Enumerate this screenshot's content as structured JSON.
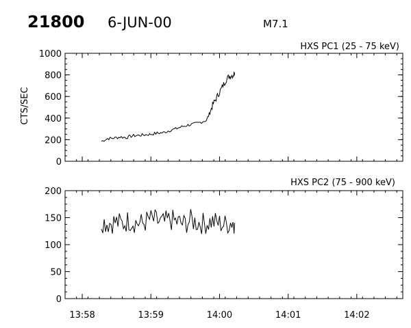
{
  "header": {
    "event_number": "21800",
    "date": "6-JUN-00",
    "flare_class": "M7.1"
  },
  "chart_data": [
    {
      "type": "line",
      "title": "HXS PC1 (25 - 75 keV)",
      "xlabel": "",
      "ylabel": "CTS/SEC",
      "ylim": [
        0,
        1000
      ],
      "yticks": [
        0,
        200,
        400,
        600,
        800,
        1000
      ],
      "xlim": [
        "13:57.75",
        "14:02.67"
      ],
      "xticks": [
        "13:58",
        "13:59",
        "14:00",
        "14:01",
        "14:02"
      ],
      "x_units": "minutes after 13:58",
      "series": [
        {
          "x": [
            0.28,
            0.37,
            0.46,
            0.55,
            0.64,
            0.73,
            0.82,
            0.91,
            1.0,
            1.09,
            1.18,
            1.27,
            1.36,
            1.45,
            1.54,
            1.63,
            1.72,
            1.81,
            1.86,
            1.9,
            1.95,
            2.0,
            2.05,
            2.1,
            2.15,
            2.2,
            2.22
          ],
          "values": [
            185,
            210,
            215,
            225,
            220,
            235,
            240,
            245,
            250,
            260,
            265,
            285,
            300,
            320,
            335,
            345,
            360,
            380,
            450,
            520,
            580,
            640,
            700,
            760,
            790,
            800,
            820
          ]
        }
      ]
    },
    {
      "type": "line",
      "title": "HXS PC2 (75 - 900 keV)",
      "xlabel": "",
      "ylabel": "",
      "ylim": [
        0,
        200
      ],
      "yticks": [
        0,
        50,
        100,
        150,
        200
      ],
      "xlim": [
        "13:57.75",
        "14:02.67"
      ],
      "xticks": [
        "13:58",
        "13:59",
        "14:00",
        "14:01",
        "14:02"
      ],
      "x_units": "minutes after 13:58",
      "series": [
        {
          "x": [
            0.28,
            0.38,
            0.48,
            0.58,
            0.68,
            0.78,
            0.88,
            0.98,
            1.08,
            1.18,
            1.28,
            1.38,
            1.48,
            1.58,
            1.68,
            1.78,
            1.88,
            1.98,
            2.08,
            2.18,
            2.22
          ],
          "values": [
            143,
            140,
            142,
            138,
            145,
            141,
            139,
            147,
            144,
            140,
            146,
            142,
            138,
            145,
            141,
            139,
            143,
            140,
            137,
            142,
            140
          ]
        }
      ]
    }
  ]
}
